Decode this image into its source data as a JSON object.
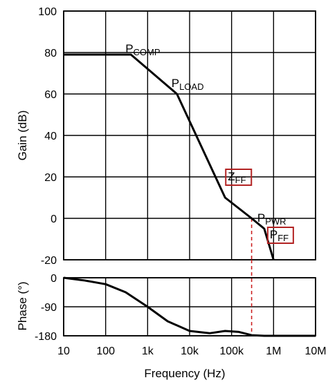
{
  "chart_data": [
    {
      "type": "line",
      "name_of_panel": "gain",
      "ylabel": "Gain (dB)",
      "x_scale": "log",
      "xlim": [
        10,
        10000000
      ],
      "ylim": [
        -20,
        100
      ],
      "y_ticks": [
        "100",
        "80",
        "60",
        "40",
        "20",
        "0",
        "-20"
      ],
      "y_tick_values": [
        100,
        80,
        60,
        40,
        20,
        0,
        -20
      ],
      "grid": true,
      "series": [
        {
          "x": [
            10,
            400,
            5000,
            70000,
            300000,
            600000,
            1000000
          ],
          "y": [
            79,
            79,
            60,
            10,
            0,
            -5,
            -20
          ]
        }
      ],
      "annotations": [
        {
          "main": "P",
          "sub": "COMP",
          "x": 400,
          "y": 79,
          "boxed": false
        },
        {
          "main": "P",
          "sub": "LOAD",
          "x": 5000,
          "y": 60,
          "boxed": false
        },
        {
          "main": "Z",
          "sub": "FF",
          "x": 70000,
          "y": 10,
          "boxed": true
        },
        {
          "main": "P",
          "sub": "PWR",
          "x": 600000,
          "y": -5,
          "boxed": false
        },
        {
          "main": "P",
          "sub": "FF",
          "x": 600000,
          "y": -5,
          "boxed": true
        }
      ],
      "marker_line": {
        "x": 300000,
        "color": "#cc2222"
      },
      "colors": {
        "line": "#000000",
        "grid": "#000000",
        "annotation_box": "#b22222"
      }
    },
    {
      "type": "line",
      "name_of_panel": "phase",
      "ylabel": "Phase (°)",
      "xlabel": "Frequency (Hz)",
      "x_scale": "log",
      "xlim": [
        10,
        10000000
      ],
      "ylim": [
        -180,
        0
      ],
      "y_ticks": [
        "0",
        "-90",
        "-180"
      ],
      "y_tick_values": [
        0,
        -90,
        -180
      ],
      "x_ticks": [
        "10",
        "100",
        "1k",
        "10k",
        "100k",
        "1M",
        "10M"
      ],
      "x_tick_values": [
        10,
        100,
        1000,
        10000,
        100000,
        1000000,
        10000000
      ],
      "grid": true,
      "series": [
        {
          "x": [
            10,
            30,
            100,
            300,
            1000,
            3000,
            10000,
            30000,
            70000,
            150000,
            300000,
            600000,
            1000000,
            3000000,
            10000000
          ],
          "y": [
            0,
            -8,
            -20,
            -45,
            -90,
            -135,
            -165,
            -172,
            -165,
            -168,
            -178,
            -180,
            -180,
            -180,
            -180
          ]
        }
      ],
      "marker_line": {
        "x": 300000,
        "color": "#cc2222"
      },
      "colors": {
        "line": "#000000",
        "grid": "#000000"
      }
    }
  ]
}
